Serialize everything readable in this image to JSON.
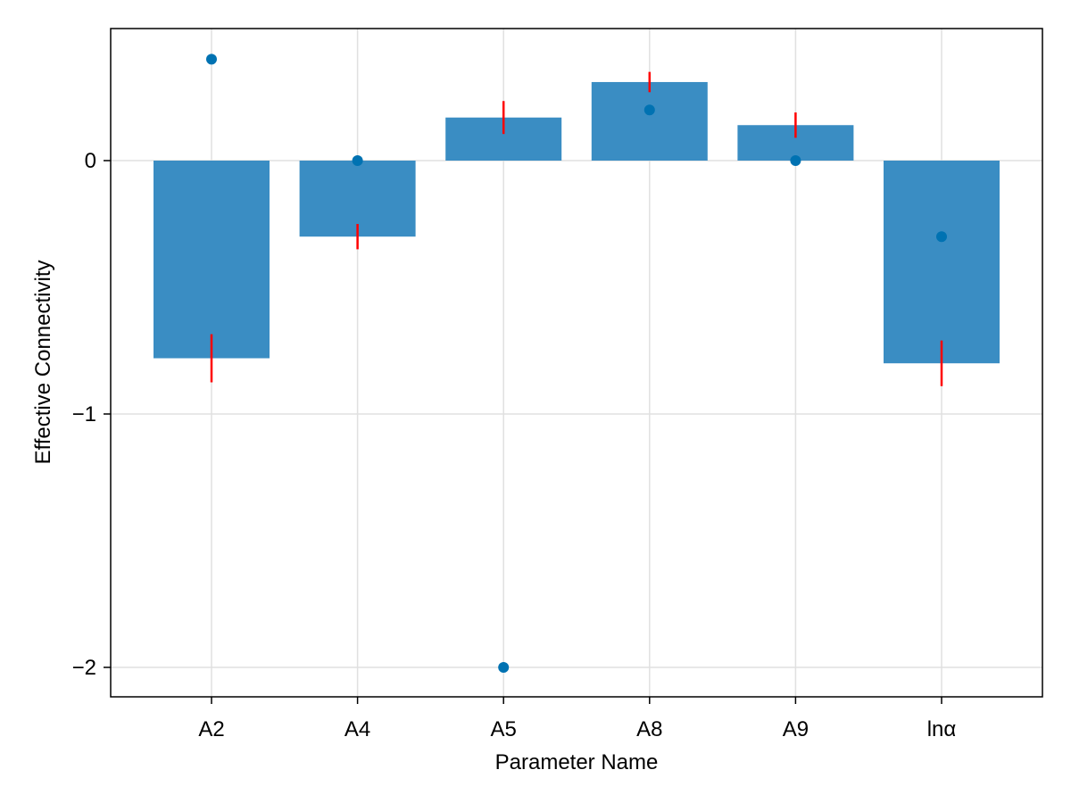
{
  "chart_data": {
    "type": "bar",
    "title": "",
    "xlabel": "Parameter Name",
    "ylabel": "Effective Connectivity",
    "categories": [
      "A2",
      "A4",
      "A5",
      "A8",
      "A9",
      "lnα"
    ],
    "series": [
      {
        "type": "bar",
        "values": [
          -0.78,
          -0.3,
          0.17,
          0.31,
          0.14,
          -0.8
        ],
        "color": "#3a8dc3"
      },
      {
        "type": "errorbar",
        "centers": [
          -0.78,
          -0.3,
          0.17,
          0.31,
          0.14,
          -0.8
        ],
        "errors": [
          0.095,
          0.05,
          0.065,
          0.04,
          0.05,
          0.09
        ],
        "color": "#ff0000"
      },
      {
        "type": "scatter",
        "values": [
          0.4,
          0.0,
          -2.0,
          0.2,
          0.0,
          -0.3
        ],
        "color": "#0072b2"
      }
    ],
    "yticks": [
      0,
      -1,
      -2
    ],
    "ytick_labels": [
      "0",
      "−1",
      "−2"
    ],
    "ylim": [
      -2.12,
      0.52
    ],
    "grid": true
  }
}
